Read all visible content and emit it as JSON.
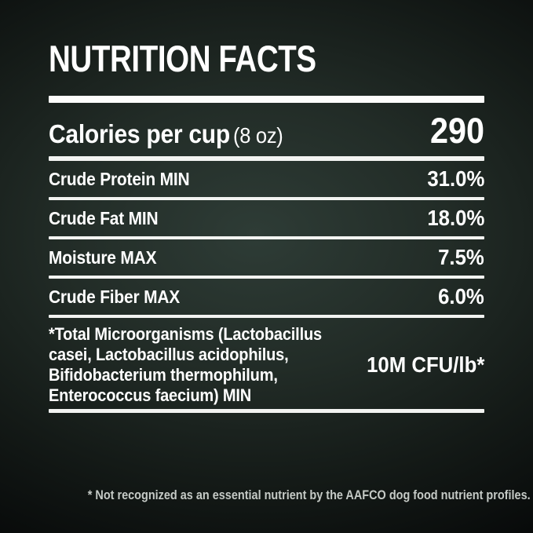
{
  "title": "NUTRITION FACTS",
  "calories": {
    "label": "Calories per cup",
    "unit": "(8 oz)",
    "value": "290"
  },
  "rows": [
    {
      "label": "Crude Protein MIN",
      "value": "31.0%"
    },
    {
      "label": "Crude Fat MIN",
      "value": "18.0%"
    },
    {
      "label": "Moisture MAX",
      "value": "7.5%"
    },
    {
      "label": "Crude Fiber MAX",
      "value": "6.0%"
    },
    {
      "label": "*Total Microorganisms (Lactobacillus casei, Lactobacillus acidophilus, Bifidobacterium thermophilum, Enterococcus faecium) MIN",
      "value": "10M CFU/lb*"
    }
  ],
  "footnote": "* Not recognized as an essential nutrient by the AAFCO dog food nutrient profiles.",
  "colors": {
    "background_center": "#2e3c36",
    "background_edge": "#020303",
    "text": "#ffffff",
    "divider": "#f2f3f1",
    "footnote_text": "#c5cac6"
  }
}
